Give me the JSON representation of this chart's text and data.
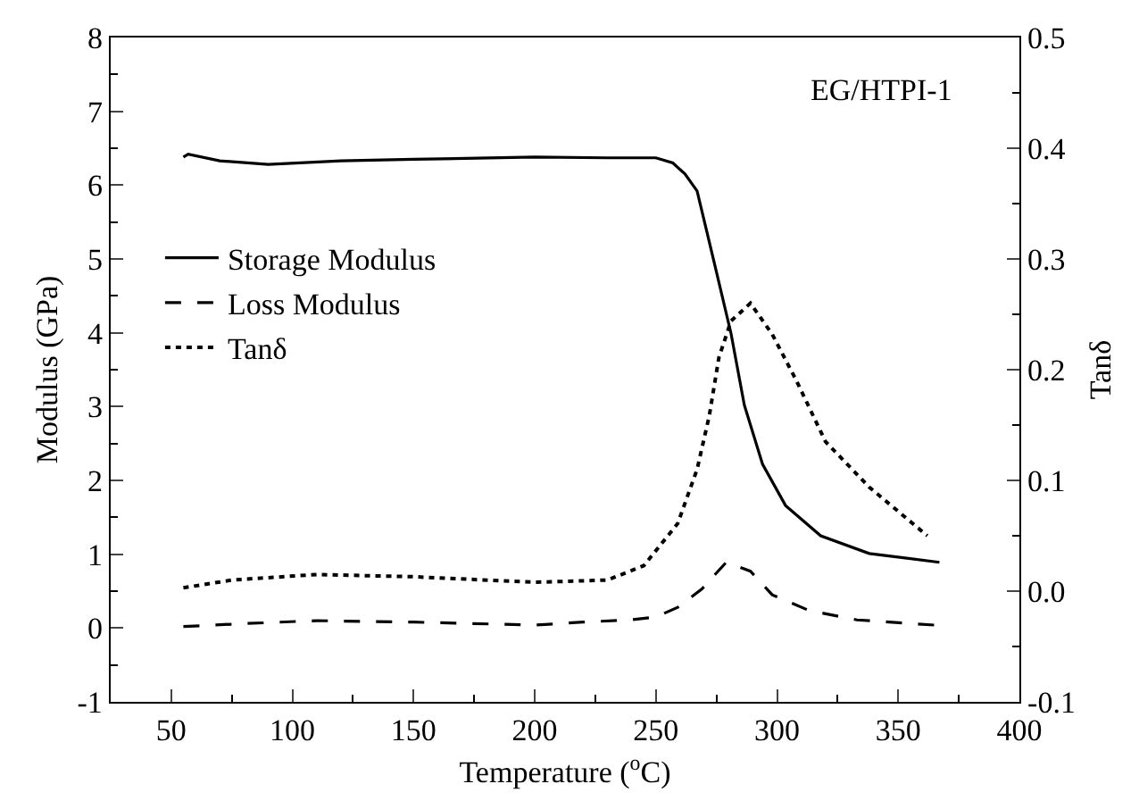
{
  "chart_data": {
    "type": "line",
    "xlabel": "Temperature ($^{o}$C)",
    "ylabel": "Modulus (GPa)",
    "y2label": "Tanδ",
    "annotations": [
      "EG/HTPI-1"
    ],
    "xlim": [
      25,
      400
    ],
    "xticks": [
      50,
      100,
      150,
      200,
      250,
      300,
      350,
      400
    ],
    "ylim": [
      -1,
      8
    ],
    "yticks": [
      -1,
      0,
      1,
      2,
      3,
      4,
      5,
      6,
      7,
      8
    ],
    "y2lim": [
      -0.1,
      0.5
    ],
    "y2ticks": [
      {
        "value": -0.1,
        "label": "-0.1"
      },
      {
        "value": 0,
        "label": "0.0"
      },
      {
        "value": 0.1,
        "label": "0.1"
      },
      {
        "value": 0.2,
        "label": "0.2"
      },
      {
        "value": 0.3,
        "label": "0.3"
      },
      {
        "value": 0.4,
        "label": "0.4"
      },
      {
        "value": 0.5,
        "label": "0.5"
      }
    ],
    "grid": false,
    "legend": "left",
    "marker": "none",
    "series": [
      {
        "name": "Storage Modulus",
        "color": "#000000",
        "line_style": "solid",
        "x": [
          55,
          57,
          70,
          90,
          120,
          150,
          200,
          230,
          250,
          257,
          262,
          267,
          274,
          281,
          286.5,
          294,
          303.5,
          318,
          338,
          367
        ],
        "values": [
          6.38,
          6.42,
          6.33,
          6.28,
          6.33,
          6.35,
          6.38,
          6.37,
          6.37,
          6.3,
          6.15,
          5.92,
          4.96,
          3.99,
          3.02,
          2.22,
          1.66,
          1.25,
          1.01,
          0.89
        ]
      },
      {
        "name": "Loss Modulus",
        "color": "#000000",
        "line_style": "dashed",
        "x": [
          55,
          80,
          110,
          150,
          200,
          220,
          239,
          250,
          259,
          269,
          279,
          289,
          298,
          313,
          333,
          365
        ],
        "values": [
          0.02,
          0.06,
          0.1,
          0.08,
          0.04,
          0.08,
          0.11,
          0.15,
          0.28,
          0.53,
          0.89,
          0.77,
          0.45,
          0.24,
          0.11,
          0.04
        ]
      },
      {
        "name": "Tanδ",
        "color": "#000000",
        "line_style": "dotted",
        "axis": "y2",
        "x": [
          55,
          75,
          110,
          150,
          200,
          230,
          245,
          259,
          267,
          272,
          276,
          281,
          289,
          298,
          308,
          320,
          338,
          362
        ],
        "values": [
          0.003,
          0.01,
          0.015,
          0.013,
          0.008,
          0.01,
          0.023,
          0.061,
          0.11,
          0.158,
          0.211,
          0.244,
          0.26,
          0.232,
          0.19,
          0.135,
          0.094,
          0.05
        ]
      }
    ]
  }
}
